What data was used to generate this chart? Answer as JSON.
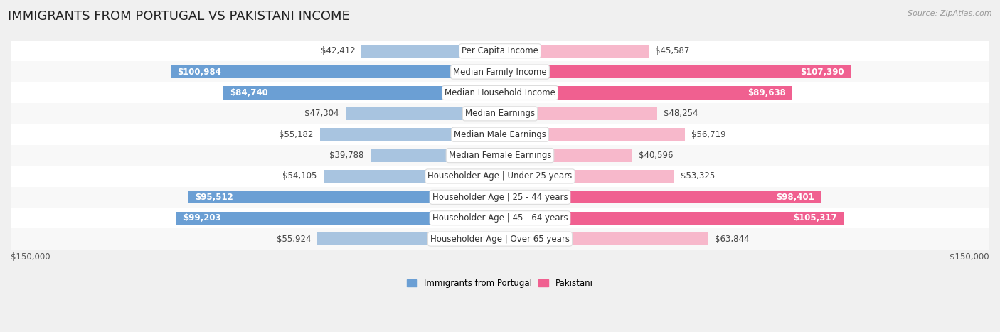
{
  "title": "IMMIGRANTS FROM PORTUGAL VS PAKISTANI INCOME",
  "source": "Source: ZipAtlas.com",
  "categories": [
    "Per Capita Income",
    "Median Family Income",
    "Median Household Income",
    "Median Earnings",
    "Median Male Earnings",
    "Median Female Earnings",
    "Householder Age | Under 25 years",
    "Householder Age | 25 - 44 years",
    "Householder Age | 45 - 64 years",
    "Householder Age | Over 65 years"
  ],
  "portugal_values": [
    42412,
    100984,
    84740,
    47304,
    55182,
    39788,
    54105,
    95512,
    99203,
    55924
  ],
  "pakistan_values": [
    45587,
    107390,
    89638,
    48254,
    56719,
    40596,
    53325,
    98401,
    105317,
    63844
  ],
  "portugal_labels": [
    "$42,412",
    "$100,984",
    "$84,740",
    "$47,304",
    "$55,182",
    "$39,788",
    "$54,105",
    "$95,512",
    "$99,203",
    "$55,924"
  ],
  "pakistan_labels": [
    "$45,587",
    "$107,390",
    "$89,638",
    "$48,254",
    "$56,719",
    "$40,596",
    "$53,325",
    "$98,401",
    "$105,317",
    "$63,844"
  ],
  "portugal_color_light": "#a8c4e0",
  "portugal_color_dark": "#6b9fd4",
  "pakistan_color_light": "#f7b8cb",
  "pakistan_color_dark": "#f06090",
  "max_value": 150000,
  "background_color": "#f0f0f0",
  "row_bg_even": "#f8f8f8",
  "row_bg_odd": "#ffffff",
  "legend_portugal": "Immigrants from Portugal",
  "legend_pakistan": "Pakistani",
  "xlabel_left": "$150,000",
  "xlabel_right": "$150,000",
  "title_fontsize": 13,
  "label_fontsize": 8.5,
  "category_fontsize": 8.5,
  "inside_threshold": 65000
}
